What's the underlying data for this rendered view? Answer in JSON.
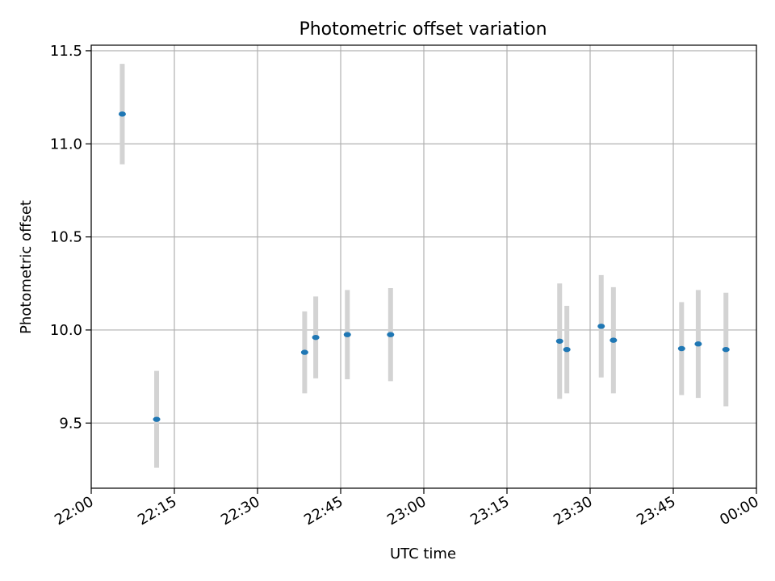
{
  "chart_data": {
    "type": "scatter",
    "title": "Photometric offset variation",
    "xlabel": "UTC time",
    "ylabel": "Photometric offset",
    "x_axis_kind": "time",
    "x_tick_labels": [
      "22:00",
      "22:15",
      "22:30",
      "22:45",
      "23:00",
      "23:15",
      "23:30",
      "23:45",
      "00:00"
    ],
    "y_ticks": [
      9.5,
      10.0,
      10.5,
      11.0,
      11.5
    ],
    "y_tick_labels": [
      "9.5",
      "10.0",
      "10.5",
      "11.0",
      "11.5"
    ],
    "xlim": [
      "22:00",
      "00:00"
    ],
    "ylim": [
      9.15,
      11.53
    ],
    "grid": true,
    "colors": {
      "points": "#1f77b4",
      "errorbars": "#d3d3d3",
      "grid": "#b0b0b0"
    },
    "series": [
      {
        "points": [
          {
            "x": "22:05.6",
            "y": 11.16,
            "err": 0.27
          },
          {
            "x": "22:11.8",
            "y": 9.52,
            "err": 0.26
          },
          {
            "x": "22:38.5",
            "y": 9.88,
            "err": 0.22
          },
          {
            "x": "22:40.5",
            "y": 9.96,
            "err": 0.22
          },
          {
            "x": "22:46.2",
            "y": 9.975,
            "err": 0.24
          },
          {
            "x": "22:54.0",
            "y": 9.975,
            "err": 0.25
          },
          {
            "x": "23:24.5",
            "y": 9.94,
            "err": 0.31
          },
          {
            "x": "23:25.8",
            "y": 9.895,
            "err": 0.235
          },
          {
            "x": "23:32.0",
            "y": 10.02,
            "err": 0.275
          },
          {
            "x": "23:34.2",
            "y": 9.945,
            "err": 0.285
          },
          {
            "x": "23:46.5",
            "y": 9.9,
            "err": 0.25
          },
          {
            "x": "23:49.5",
            "y": 9.925,
            "err": 0.29
          },
          {
            "x": "23:54.5",
            "y": 9.895,
            "err": 0.305
          }
        ]
      }
    ]
  }
}
